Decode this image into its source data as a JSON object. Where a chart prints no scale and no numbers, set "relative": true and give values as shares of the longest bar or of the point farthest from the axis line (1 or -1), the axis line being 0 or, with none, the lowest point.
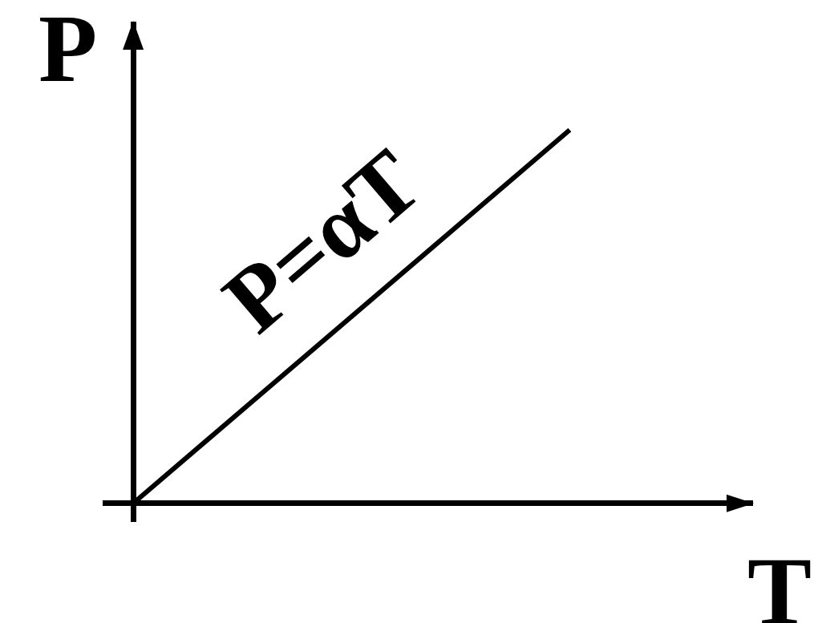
{
  "chart_data": {
    "type": "line",
    "xlabel": "T",
    "ylabel": "P",
    "categories": [
      null,
      null
    ],
    "relative": true,
    "series": [
      {
        "name": "P=αT",
        "color": "#000000",
        "values": [
          0,
          1
        ]
      }
    ]
  }
}
